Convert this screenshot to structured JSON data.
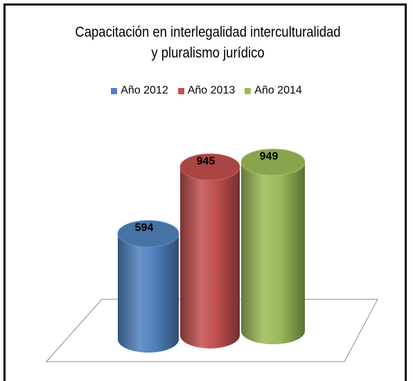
{
  "chart_data": {
    "type": "cylinder",
    "title": "Capacitación en interlegalidad interculturalidad y pluralismo jurídico",
    "series": [
      {
        "name": "Año 2012",
        "color": "#4f81bd",
        "values": [
          594
        ]
      },
      {
        "name": "Año 2013",
        "color": "#c0504d",
        "values": [
          945
        ]
      },
      {
        "name": "Año 2014",
        "color": "#9bbb59",
        "values": [
          949
        ]
      }
    ],
    "legend": "top"
  }
}
